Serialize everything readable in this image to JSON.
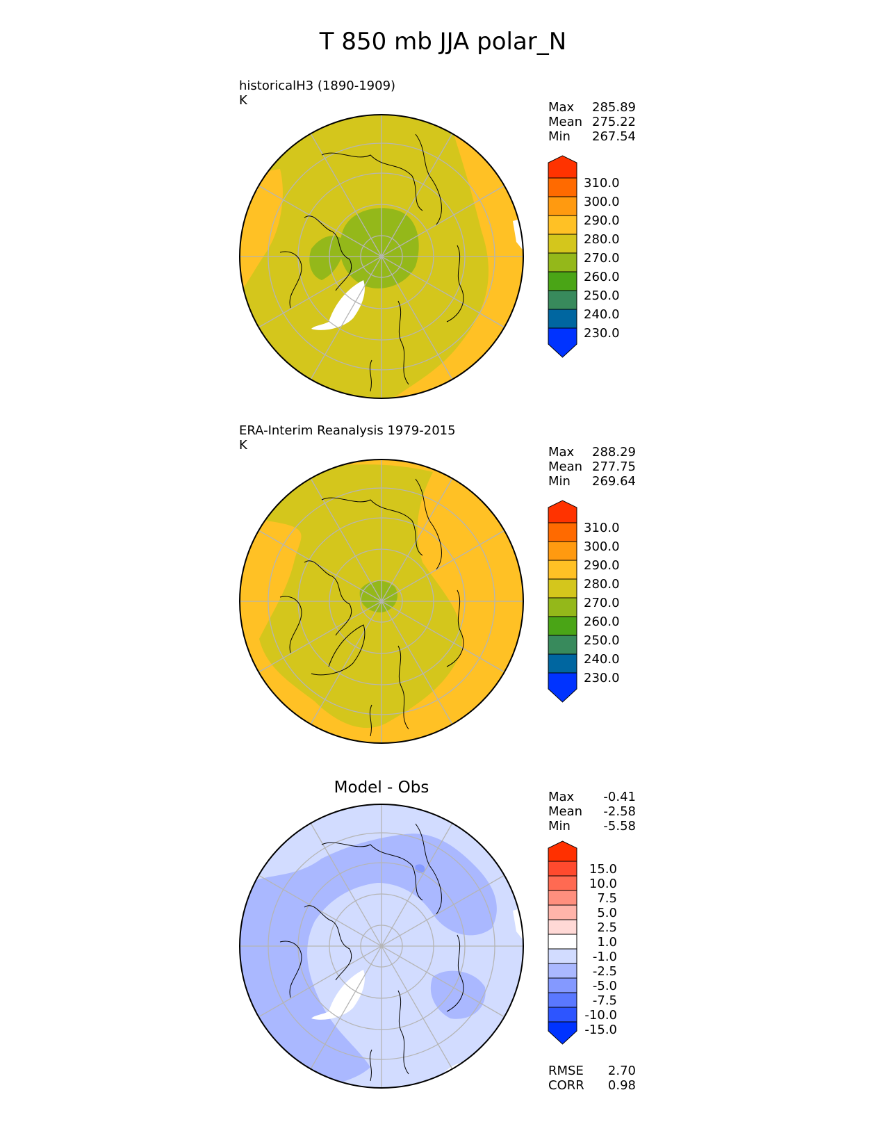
{
  "title": "T 850 mb JJA polar_N",
  "panels": [
    {
      "title_line1": "historicalH3 (1890-1909)",
      "title_line2": "K",
      "stats": [
        {
          "label": "Max",
          "value": "285.89"
        },
        {
          "label": "Mean",
          "value": "275.22"
        },
        {
          "label": "Min",
          "value": "267.54"
        }
      ],
      "colorbar_ticks": [
        "310.0",
        "300.0",
        "290.0",
        "280.0",
        "270.0",
        "260.0",
        "250.0",
        "240.0",
        "230.0"
      ]
    },
    {
      "title_line1": "ERA-Interim Reanalysis 1979-2015",
      "title_line2": "K",
      "stats": [
        {
          "label": "Max",
          "value": "288.29"
        },
        {
          "label": "Mean",
          "value": "277.75"
        },
        {
          "label": "Min",
          "value": "269.64"
        }
      ],
      "colorbar_ticks": [
        "310.0",
        "300.0",
        "290.0",
        "280.0",
        "270.0",
        "260.0",
        "250.0",
        "240.0",
        "230.0"
      ]
    },
    {
      "title": "Model - Obs",
      "stats": [
        {
          "label": "Max",
          "value": "-0.41"
        },
        {
          "label": "Mean",
          "value": "-2.58"
        },
        {
          "label": "Min",
          "value": "-5.58"
        }
      ],
      "colorbar_ticks": [
        "15.0",
        "10.0",
        "7.5",
        "5.0",
        "2.5",
        "1.0",
        "-1.0",
        "-2.5",
        "-5.0",
        "-7.5",
        "-10.0",
        "-15.0"
      ],
      "metrics": [
        {
          "label": "RMSE",
          "value": "2.70"
        },
        {
          "label": "CORR",
          "value": "0.98"
        }
      ]
    }
  ],
  "colors": {
    "abs_scale": [
      "#0033ff",
      "#0066a0",
      "#388a5c",
      "#4aa516",
      "#94b81a",
      "#d4c61c",
      "#ffc125",
      "#ff9a10",
      "#ff6a00",
      "#ff3300"
    ],
    "diff_scale": [
      "#0033ff",
      "#2d55ff",
      "#5a78ff",
      "#8499ff",
      "#aab8ff",
      "#d2dcff",
      "#ffffff",
      "#ffd9d6",
      "#ffb4aa",
      "#ff8f7e",
      "#ff6a52",
      "#ff4a2e",
      "#ff3000"
    ],
    "coastline": "#000000",
    "graticule": "#b5b5b5"
  }
}
